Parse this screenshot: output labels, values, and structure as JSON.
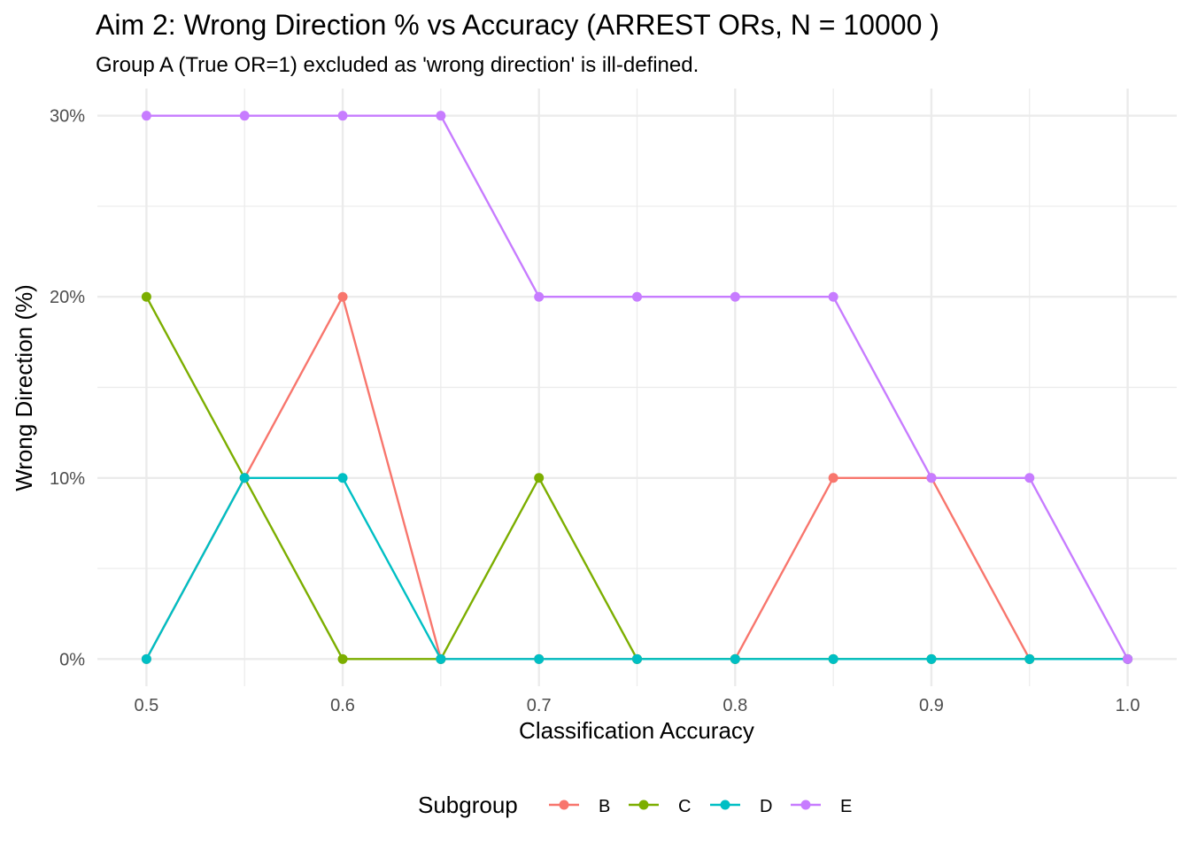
{
  "chart_data": {
    "type": "line",
    "title": "Aim 2: Wrong Direction % vs Accuracy (ARREST ORs, N = 10000 )",
    "subtitle": "Group A (True OR=1) excluded as 'wrong direction' is ill-defined.",
    "xlabel": "Classification Accuracy",
    "ylabel": "Wrong Direction (%)",
    "x": [
      0.5,
      0.55,
      0.6,
      0.65,
      0.7,
      0.75,
      0.8,
      0.85,
      0.9,
      0.95,
      1.0
    ],
    "x_ticks": [
      {
        "value": 0.5,
        "label": "0.5"
      },
      {
        "value": 0.6,
        "label": "0.6"
      },
      {
        "value": 0.7,
        "label": "0.7"
      },
      {
        "value": 0.8,
        "label": "0.8"
      },
      {
        "value": 0.9,
        "label": "0.9"
      },
      {
        "value": 1.0,
        "label": "1.0"
      }
    ],
    "y_ticks": [
      {
        "value": 0,
        "label": "0%"
      },
      {
        "value": 10,
        "label": "10%"
      },
      {
        "value": 20,
        "label": "20%"
      },
      {
        "value": 30,
        "label": "30%"
      }
    ],
    "xlim": [
      0.475,
      1.025
    ],
    "ylim": [
      -1.5,
      31.5
    ],
    "grid": true,
    "legend": {
      "title": "Subgroup",
      "position": "bottom"
    },
    "series": [
      {
        "name": "B",
        "color": "#F8766D",
        "values": [
          0,
          10,
          20,
          0,
          0,
          0,
          0,
          10,
          10,
          0,
          0
        ]
      },
      {
        "name": "C",
        "color": "#7CAE00",
        "values": [
          20,
          10,
          0,
          0,
          10,
          0,
          0,
          0,
          0,
          0,
          0
        ]
      },
      {
        "name": "D",
        "color": "#00BFC4",
        "values": [
          0,
          10,
          10,
          0,
          0,
          0,
          0,
          0,
          0,
          0,
          0
        ]
      },
      {
        "name": "E",
        "color": "#C77CFF",
        "values": [
          30,
          30,
          30,
          30,
          20,
          20,
          20,
          20,
          10,
          10,
          0
        ]
      }
    ]
  }
}
